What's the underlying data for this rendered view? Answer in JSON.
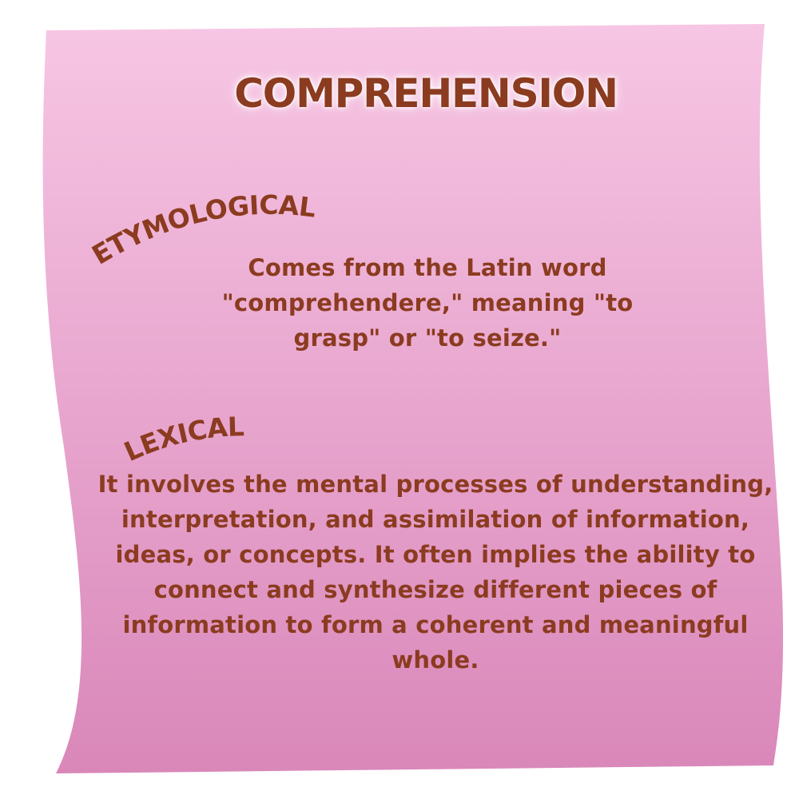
{
  "title": "COMPREHENSION",
  "etymological": {
    "heading": "ETYMOLOGICAL",
    "text": "Comes from the Latin word \"comprehendere,\" meaning \"to grasp\" or \"to seize.\""
  },
  "lexical": {
    "heading": "LEXICAL",
    "text": "It involves the mental processes of understanding, interpretation, and assimilation of information, ideas, or concepts. It often implies the ability to connect and synthesize different pieces of information to form a coherent and meaningful whole."
  },
  "colors": {
    "paper_top": "#f7c6e4",
    "paper_bottom": "#d987b9",
    "text": "#8b3b1f"
  }
}
